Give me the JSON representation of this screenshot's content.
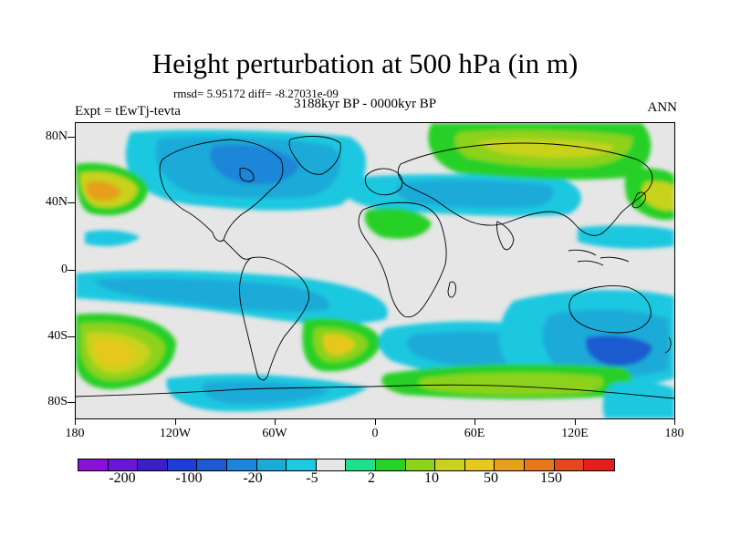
{
  "title": "Height perturbation at 500 hPa (in m)",
  "stats": "rmsd= 5.95172 diff= -8.27031e-09",
  "left_label": "Expt = tEwTj-tevta",
  "center_label": "3188kyr BP - 0000kyr BP",
  "right_label": "ANN",
  "lat_labels": [
    "80N",
    "40N",
    "0",
    "40S",
    "80S"
  ],
  "lon_labels": [
    "180",
    "120W",
    "60W",
    "0",
    "60E",
    "120E",
    "180"
  ],
  "colorbar": {
    "colors": [
      "#8a10d8",
      "#6a16d8",
      "#3a1ec8",
      "#1e3cd8",
      "#1e5ad0",
      "#1e86d8",
      "#1eaad8",
      "#1ec8e0",
      "#e6e6e6",
      "#1ee08a",
      "#28d028",
      "#8cd21e",
      "#c8d21e",
      "#e6c81e",
      "#e6a01e",
      "#e6781e",
      "#e6461e",
      "#e61e1e"
    ],
    "labels": [
      "-200",
      "-100",
      "-20",
      "-5",
      "2",
      "10",
      "50",
      "150"
    ]
  },
  "map_layers": {
    "background": "#e6e6e6",
    "coastline_color": "#000000"
  }
}
